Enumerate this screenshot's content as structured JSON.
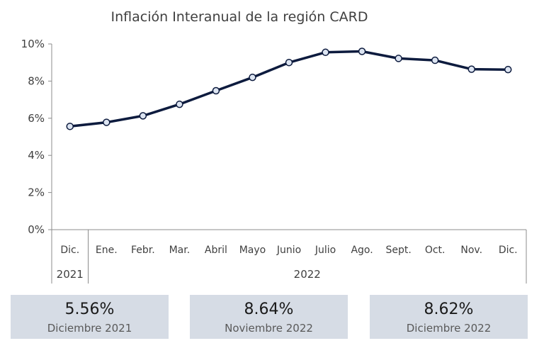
{
  "chart_data": {
    "type": "line",
    "title": "Inflación Interanual de la región CARD",
    "categories": [
      "Dic.",
      "Ene.",
      "Febr.",
      "Mar.",
      "Abril",
      "Mayo",
      "Junio",
      "Julio",
      "Ago.",
      "Sept.",
      "Oct.",
      "Nov.",
      "Dic."
    ],
    "year_groups": [
      {
        "label": "2021",
        "count": 1
      },
      {
        "label": "2022",
        "count": 12
      }
    ],
    "values": [
      5.56,
      5.78,
      6.13,
      6.75,
      7.48,
      8.2,
      9.0,
      9.55,
      9.6,
      9.22,
      9.12,
      8.64,
      8.62
    ],
    "ylim": [
      0,
      10
    ],
    "yticks": [
      0,
      2,
      4,
      6,
      8,
      10
    ],
    "ytick_labels": [
      "0%",
      "2%",
      "4%",
      "6%",
      "8%",
      "10%"
    ],
    "xlabel": "",
    "ylabel": "",
    "grid": false,
    "legend": "none",
    "line_color": "#0d1b3e",
    "marker_fill": "#dde5f2"
  },
  "cards": [
    {
      "value": "5.56%",
      "label": "Diciembre 2021"
    },
    {
      "value": "8.64%",
      "label": "Noviembre 2022"
    },
    {
      "value": "8.62%",
      "label": "Diciembre 2022"
    }
  ]
}
